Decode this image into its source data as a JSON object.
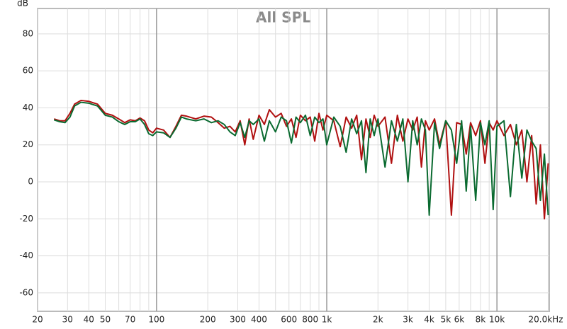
{
  "chart_data": {
    "type": "line",
    "title": "All SPL",
    "y_unit": "dB",
    "log_x": true,
    "grid": true,
    "xlim": [
      20,
      20300
    ],
    "ylim": [
      -70,
      93.7
    ],
    "yticks": [
      -60,
      -40,
      -20,
      0,
      20,
      40,
      60,
      80
    ],
    "xticks": [
      20,
      30,
      40,
      50,
      70,
      100,
      200,
      300,
      400,
      600,
      800,
      {
        "value": 1000,
        "label": "1k"
      },
      {
        "value": 2000,
        "label": "2k"
      },
      {
        "value": 3000,
        "label": "3k"
      },
      {
        "value": 4000,
        "label": "4k"
      },
      {
        "value": 5000,
        "label": "5k"
      },
      {
        "value": 6000,
        "label": "6k"
      },
      {
        "value": 8000,
        "label": "8k"
      },
      {
        "value": 10000,
        "label": "10k"
      },
      {
        "value": 20000,
        "label": "20.0kHz"
      }
    ],
    "xminor": [
      60,
      80,
      90,
      500,
      700,
      900,
      7000,
      9000
    ],
    "x": [
      25,
      27,
      29,
      31,
      33,
      36,
      40,
      45,
      50,
      55,
      60,
      65,
      70,
      75,
      80,
      85,
      90,
      95,
      100,
      110,
      120,
      130,
      140,
      150,
      170,
      190,
      210,
      230,
      250,
      270,
      290,
      310,
      330,
      350,
      370,
      400,
      430,
      460,
      500,
      540,
      580,
      620,
      660,
      700,
      750,
      800,
      850,
      900,
      950,
      1000,
      1100,
      1200,
      1300,
      1400,
      1500,
      1600,
      1700,
      1800,
      1900,
      2000,
      2200,
      2400,
      2600,
      2800,
      3000,
      3200,
      3400,
      3600,
      3800,
      4000,
      4300,
      4600,
      5000,
      5400,
      5800,
      6200,
      6600,
      7000,
      7500,
      8000,
      8500,
      9000,
      9500,
      10000,
      11000,
      12000,
      13000,
      14000,
      15000,
      16000,
      17000,
      18000,
      19000,
      20000
    ],
    "series": [
      {
        "color": "#b01010",
        "values": [
          34,
          33,
          33,
          37,
          42,
          44,
          43.5,
          42,
          37,
          36,
          34,
          32,
          33.5,
          33,
          34.5,
          33,
          28,
          26.5,
          29,
          28,
          24,
          30,
          36,
          35.5,
          34,
          35.5,
          35,
          32,
          29,
          30,
          27,
          33,
          20,
          34,
          23,
          36,
          31,
          39,
          35,
          37,
          30,
          34,
          24,
          36,
          33,
          35,
          22,
          37,
          28,
          36,
          33,
          19,
          35,
          29,
          36,
          12,
          34,
          24,
          36,
          30,
          35,
          10,
          36,
          22,
          34,
          28,
          35,
          8,
          33,
          28,
          34,
          20,
          33,
          -18,
          32,
          31,
          15,
          32,
          25,
          33,
          10,
          32,
          28,
          33,
          25,
          31,
          20,
          28,
          0,
          25,
          -12,
          20,
          -20,
          10
        ]
      },
      {
        "color": "#0a6a30",
        "values": [
          33.5,
          32.5,
          32,
          35,
          41,
          43,
          42.5,
          41,
          36,
          35,
          32.5,
          31,
          32.5,
          32.5,
          34,
          31,
          26,
          25,
          27,
          26.5,
          24,
          29,
          35,
          34,
          33,
          34,
          32,
          33,
          31,
          27,
          25,
          32,
          24,
          33,
          31,
          34,
          22,
          33,
          27,
          35,
          33,
          21,
          35,
          32,
          36,
          25,
          35,
          32,
          34,
          20,
          35,
          30,
          16,
          34,
          26,
          33,
          5,
          34,
          25,
          34,
          8,
          33,
          22,
          34,
          0,
          33,
          20,
          34,
          28,
          -18,
          32,
          18,
          33,
          28,
          10,
          33,
          -5,
          30,
          -10,
          32,
          20,
          33,
          -15,
          30,
          33,
          -8,
          31,
          2,
          28,
          22,
          18,
          -10,
          15,
          -18
        ]
      }
    ]
  }
}
